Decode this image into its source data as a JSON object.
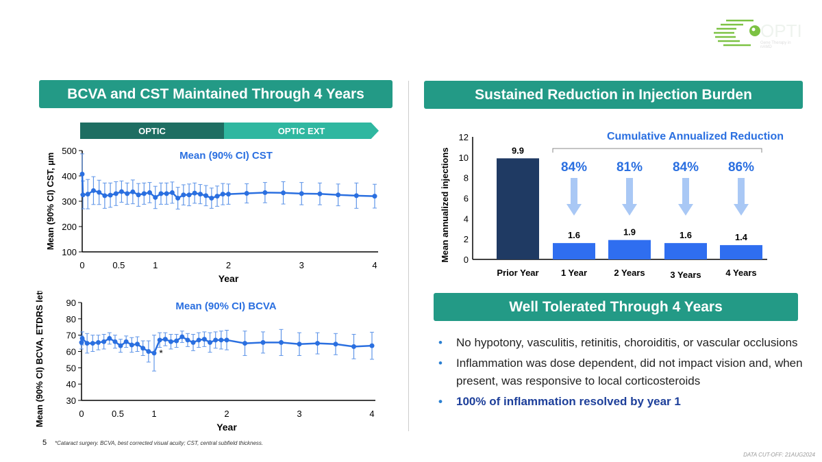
{
  "logo": {
    "text": "OPTIC",
    "tagline": "Gene Therapy in nAMD"
  },
  "left_banner": "BCVA and CST Maintained Through 4 Years",
  "right_banner": "Sustained Reduction in Injection Burden",
  "tolerated_banner": "Well Tolerated Through 4 Years",
  "phase": {
    "optic": "OPTIC",
    "optic_ext": "OPTIC EXT"
  },
  "bullets": [
    "No hypotony, vasculitis, retinitis, choroiditis, or vascular occlusions",
    "Inflammation was dose dependent, did not impact vision and, when present, was responsive to local corticosteroids",
    "100% of inflammation resolved by year 1"
  ],
  "footer": {
    "page": "5",
    "footnote": "*Cataract surgery. BCVA, best corrected visual acuity; CST, central subfield thickness.",
    "cutoff": "DATA CUT-OFF: 21AUG2024"
  },
  "colors": {
    "teal": "#239a86",
    "dark_teal": "#1e6e62",
    "blue": "#2a6fe0",
    "navy": "#1f3a63",
    "bar": "#2f6ef0"
  },
  "chart_data": [
    {
      "type": "line",
      "title": "Mean (90% CI) CST",
      "xlabel": "Year",
      "ylabel": "Mean (90% CI) CST, µm",
      "ylim": [
        100,
        500
      ],
      "xlim": [
        0,
        4
      ],
      "yticks": [
        "100",
        "200",
        "300",
        "400",
        "500"
      ],
      "xticks": [
        "0",
        "0.5",
        "1",
        "2",
        "3",
        "4"
      ],
      "x": [
        0,
        0.01,
        0.077,
        0.154,
        0.231,
        0.308,
        0.385,
        0.462,
        0.538,
        0.615,
        0.692,
        0.769,
        0.846,
        0.923,
        1.0,
        1.077,
        1.154,
        1.231,
        1.308,
        1.385,
        1.462,
        1.538,
        1.615,
        1.692,
        1.769,
        1.846,
        1.923,
        2.0,
        2.25,
        2.5,
        2.75,
        3.0,
        3.25,
        3.5,
        3.75,
        4.0
      ],
      "y": [
        407,
        325,
        328,
        342,
        335,
        322,
        324,
        330,
        338,
        330,
        337,
        325,
        330,
        334,
        315,
        330,
        330,
        334,
        312,
        325,
        325,
        332,
        328,
        322,
        312,
        320,
        328,
        328,
        331,
        334,
        333,
        330,
        329,
        325,
        322,
        320
      ],
      "ci": [
        80,
        55,
        58,
        55,
        48,
        50,
        48,
        47,
        42,
        42,
        47,
        45,
        42,
        40,
        44,
        42,
        42,
        42,
        43,
        40,
        43,
        40,
        38,
        40,
        40,
        40,
        42,
        40,
        38,
        40,
        44,
        44,
        43,
        43,
        50,
        47
      ]
    },
    {
      "type": "line",
      "title": "Mean (90% CI) BCVA",
      "xlabel": "Year",
      "ylabel": "Mean (90% CI) BCVA, ETDRS letters",
      "ylim": [
        30,
        90
      ],
      "xlim": [
        0,
        4
      ],
      "yticks": [
        "30",
        "40",
        "50",
        "60",
        "70",
        "80",
        "90"
      ],
      "xticks": [
        "0",
        "0.5",
        "1",
        "2",
        "3",
        "4"
      ],
      "annotation": "*",
      "x": [
        0,
        0.01,
        0.077,
        0.154,
        0.231,
        0.308,
        0.385,
        0.462,
        0.538,
        0.615,
        0.692,
        0.769,
        0.846,
        0.923,
        1.0,
        1.077,
        1.154,
        1.231,
        1.308,
        1.385,
        1.462,
        1.538,
        1.615,
        1.692,
        1.769,
        1.846,
        1.923,
        2.0,
        2.25,
        2.5,
        2.75,
        3.0,
        3.25,
        3.5,
        3.75,
        4.0
      ],
      "y": [
        65.5,
        68,
        65,
        65,
        65.5,
        66,
        68,
        66,
        63.5,
        66,
        64,
        64.5,
        62,
        60,
        59,
        67,
        67.5,
        66,
        66.5,
        69,
        67,
        65.5,
        67,
        67.5,
        65.5,
        67,
        67,
        67,
        65,
        65.5,
        65.5,
        64.5,
        65,
        64.5,
        63,
        63.5
      ],
      "ci": [
        4,
        4,
        6,
        5,
        4.5,
        4.5,
        3.5,
        4,
        4,
        3.5,
        4.5,
        4.5,
        4.5,
        6.5,
        11,
        4.5,
        4,
        4.5,
        4,
        3.5,
        4,
        5,
        4.5,
        4.5,
        6,
        5,
        5.5,
        6,
        7.5,
        6.5,
        8,
        7,
        6.5,
        6.5,
        7.5,
        8.3
      ]
    },
    {
      "type": "bar",
      "title": "Cumulative Annualized Reduction",
      "ylabel": "Mean annualized injections",
      "ylim": [
        0,
        12
      ],
      "yticks": [
        "0",
        "2",
        "4",
        "6",
        "8",
        "10",
        "12"
      ],
      "categories": [
        "Prior Year",
        "1 Year",
        "2 Years",
        "3 Years",
        "4 Years"
      ],
      "values": [
        9.9,
        1.6,
        1.9,
        1.6,
        1.4
      ],
      "value_labels": [
        "9.9",
        "1.6",
        "1.9",
        "1.6",
        "1.4"
      ],
      "reductions": [
        "84%",
        "81%",
        "84%",
        "86%"
      ]
    }
  ]
}
